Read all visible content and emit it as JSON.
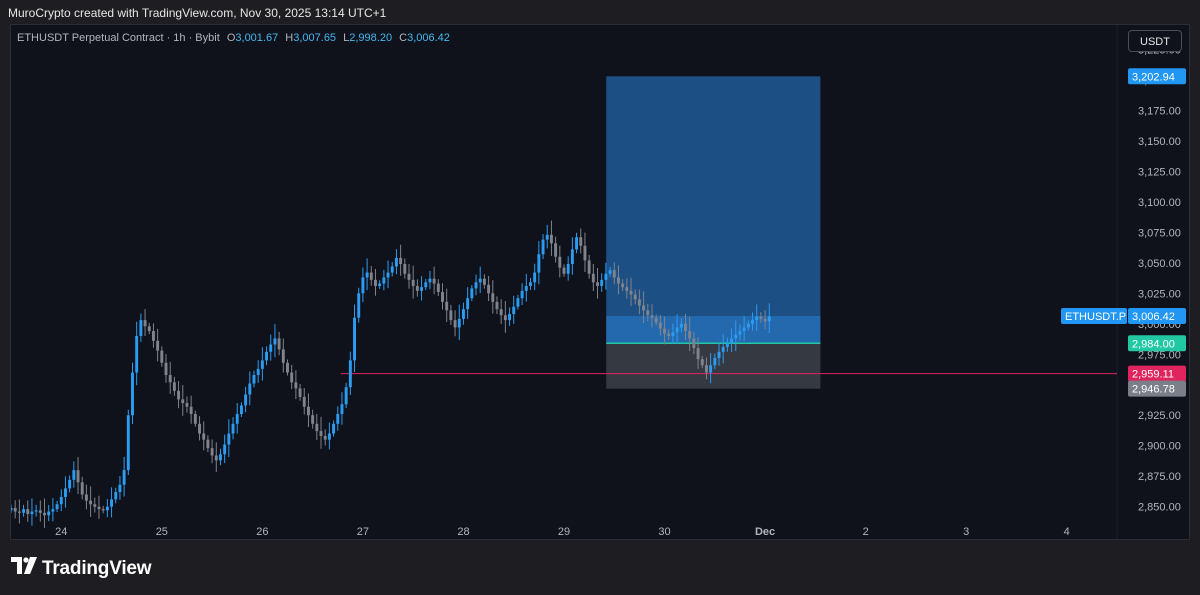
{
  "header": {
    "credit": "MuroCrypto created with TradingView.com, Nov 30, 2025 13:14 UTC+1"
  },
  "legend": {
    "symbol": "ETHUSDT Perpetual Contract · 1h · Bybit",
    "open_key": "O",
    "open": "3,001.67",
    "high_key": "H",
    "high": "3,007.65",
    "low_key": "L",
    "low": "2,998.20",
    "close_key": "C",
    "close": "3,006.42"
  },
  "currency_button": "USDT",
  "footer": {
    "brand": "TradingView"
  },
  "colors": {
    "up": "#2b9cf2",
    "down": "#7f838c",
    "target_zone": "#1f5a97",
    "stop_zone": "#3a3e47",
    "entry_line": "#22c7a3",
    "support_line": "#e0245e",
    "last_price": "#2196f3"
  },
  "chart_data": {
    "type": "candlestick",
    "symbol": "ETHUSDT Perpetual Contract",
    "interval": "1h",
    "exchange": "Bybit",
    "y_ticks": [
      "3,225.00",
      "3,200.00",
      "3,175.00",
      "3,150.00",
      "3,125.00",
      "3,100.00",
      "3,075.00",
      "3,050.00",
      "3,025.00",
      "3,000.00",
      "2,975.00",
      "2,950.00",
      "2,925.00",
      "2,900.00",
      "2,875.00",
      "2,850.00"
    ],
    "y_tick_values": [
      3225,
      3200,
      3175,
      3150,
      3125,
      3100,
      3075,
      3050,
      3025,
      3000,
      2975,
      2950,
      2925,
      2900,
      2875,
      2850
    ],
    "ylim": [
      2835,
      3245
    ],
    "x_ticks": [
      "24",
      "25",
      "26",
      "27",
      "28",
      "29",
      "30",
      "Dec",
      "2",
      "3",
      "4"
    ],
    "x_tick_days": [
      24,
      25,
      26,
      27,
      28,
      29,
      30,
      31,
      32,
      33,
      34
    ],
    "xlim_days": [
      23.5,
      34.5
    ],
    "closes": [
      2849,
      2846,
      2845,
      2848,
      2844,
      2846,
      2847,
      2845,
      2843,
      2846,
      2848,
      2852,
      2858,
      2865,
      2872,
      2880,
      2870,
      2860,
      2855,
      2852,
      2850,
      2848,
      2847,
      2850,
      2856,
      2862,
      2868,
      2880,
      2925,
      2960,
      2990,
      3003,
      2998,
      2994,
      2986,
      2978,
      2968,
      2958,
      2952,
      2945,
      2938,
      2935,
      2932,
      2926,
      2918,
      2910,
      2905,
      2898,
      2892,
      2888,
      2893,
      2901,
      2910,
      2918,
      2926,
      2933,
      2942,
      2951,
      2958,
      2963,
      2970,
      2977,
      2983,
      2988,
      2979,
      2968,
      2960,
      2952,
      2947,
      2940,
      2932,
      2925,
      2918,
      2912,
      2908,
      2905,
      2910,
      2918,
      2926,
      2934,
      2948,
      2970,
      3005,
      3025,
      3038,
      3042,
      3036,
      3031,
      3033,
      3038,
      3042,
      3047,
      3054,
      3049,
      3041,
      3036,
      3031,
      3027,
      3030,
      3034,
      3037,
      3033,
      3026,
      3018,
      3011,
      3003,
      2997,
      3004,
      3012,
      3021,
      3029,
      3034,
      3037,
      3032,
      3025,
      3018,
      3012,
      3007,
      3003,
      3008,
      3014,
      3021,
      3027,
      3031,
      3034,
      3042,
      3057,
      3069,
      3073,
      3066,
      3055,
      3046,
      3041,
      3049,
      3061,
      3071,
      3064,
      3052,
      3041,
      3034,
      3031,
      3036,
      3041,
      3044,
      3038,
      3033,
      3030,
      3027,
      3024,
      3020,
      3015,
      3011,
      3007,
      3005,
      3001,
      2996,
      2992,
      2990,
      2993,
      2997,
      3000,
      2994,
      2988,
      2980,
      2971,
      2966,
      2960,
      2966,
      2972,
      2977,
      2981,
      2984,
      2988,
      2991,
      2994,
      2997,
      3000,
      3003,
      3006,
      3004,
      3002,
      3006
    ],
    "last_close": 3006.42,
    "start_day": 23.5,
    "bars_per_day": 24,
    "position_tool": {
      "entry": 2984.0,
      "target": 3202.94,
      "stop": 2946.78,
      "start_day": 29.42,
      "end_day": 31.55
    },
    "horizontal_line": {
      "price": 2959.11,
      "start_day": 26.78
    },
    "price_labels": [
      {
        "name": "symbol-tag",
        "text": "ETHUSDT.P",
        "price": 3006.42,
        "color": "#2196f3"
      },
      {
        "name": "last-price",
        "text": "3,006.42",
        "price": 3006.42,
        "color": "#2196f3"
      },
      {
        "name": "target-price",
        "text": "3,202.94",
        "price": 3202.94,
        "color": "#2196f3"
      },
      {
        "name": "entry-price",
        "text": "2,984.00",
        "price": 2984.0,
        "color": "#22c7a3"
      },
      {
        "name": "line-price",
        "text": "2,959.11",
        "price": 2959.11,
        "color": "#e0245e"
      },
      {
        "name": "stop-price",
        "text": "2,946.78",
        "price": 2946.78,
        "color": "#7b7f89"
      }
    ]
  }
}
